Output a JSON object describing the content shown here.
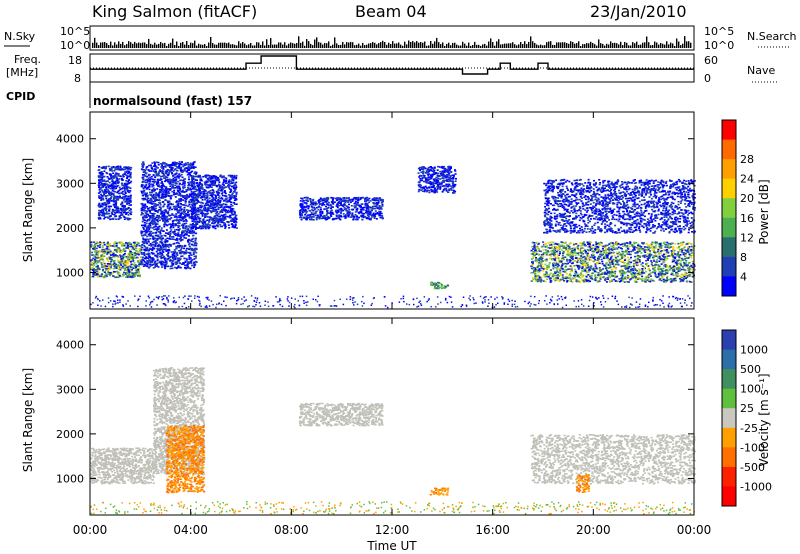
{
  "header": {
    "station": "King Salmon (fitACF)",
    "beam": "Beam 04",
    "date": "23/Jan/2010"
  },
  "strip": {
    "nsky_label": "N.Sky",
    "nsearch_label": "N.Search",
    "log_tick_high": "10^5",
    "log_tick_low": "10^0",
    "freq_label_line1": "Freq.",
    "freq_label_line2": "[MHz]",
    "freq_tick_high": "18",
    "freq_tick_low": "8",
    "nave_label": "Nave",
    "nave_tick_high": "60",
    "nave_tick_low": "0",
    "cpid_label": "CPID",
    "cpid_value": "normalsound (fast) 157"
  },
  "colors": {
    "power": [
      "#0000ff",
      "#1f3fb4",
      "#2b6e6e",
      "#4caf50",
      "#7fcf3f",
      "#ffd000",
      "#ff9f00",
      "#ff6a00",
      "#ff0000"
    ],
    "velocity": [
      "#2b3fb0",
      "#2b6ea8",
      "#3f8f5f",
      "#5fc03f",
      "#c8c8c0",
      "#ffa000",
      "#ff7000",
      "#ff2000",
      "#ff0000"
    ],
    "ground_scatter": "#c0c0b8"
  },
  "chart_data": [
    {
      "type": "heatmap",
      "panel": "power",
      "xlabel": "",
      "ylabel": "Slant Range [km]",
      "x_range_hours": [
        0,
        24
      ],
      "ylim_km": [
        180,
        4600
      ],
      "y_ticks": [
        "1000",
        "2000",
        "3000",
        "4000"
      ],
      "colorbar_label": "Power [dB]",
      "colorbar_ticks": [
        "4",
        "8",
        "12",
        "16",
        "20",
        "24",
        "28"
      ],
      "scatter_regions": [
        {
          "t": [
            0.0,
            2.0
          ],
          "r": [
            900,
            1700
          ],
          "intensity": "high"
        },
        {
          "t": [
            2.0,
            4.2
          ],
          "r": [
            1100,
            3500
          ],
          "intensity": "low"
        },
        {
          "t": [
            0.3,
            1.6
          ],
          "r": [
            2200,
            3400
          ],
          "intensity": "low"
        },
        {
          "t": [
            4.0,
            5.8
          ],
          "r": [
            2000,
            3200
          ],
          "intensity": "low"
        },
        {
          "t": [
            8.3,
            11.6
          ],
          "r": [
            2200,
            2700
          ],
          "intensity": "low"
        },
        {
          "t": [
            13.5,
            14.2
          ],
          "r": [
            650,
            800
          ],
          "intensity": "medium"
        },
        {
          "t": [
            13.0,
            14.5
          ],
          "r": [
            2800,
            3400
          ],
          "intensity": "low"
        },
        {
          "t": [
            17.5,
            24.0
          ],
          "r": [
            800,
            1700
          ],
          "intensity": "high"
        },
        {
          "t": [
            18.0,
            24.0
          ],
          "r": [
            1900,
            3100
          ],
          "intensity": "low"
        }
      ]
    },
    {
      "type": "heatmap",
      "panel": "velocity",
      "xlabel": "Time UT",
      "ylabel": "Slant Range [km]",
      "x_range_hours": [
        0,
        24
      ],
      "ylim_km": [
        180,
        4600
      ],
      "y_ticks": [
        "1000",
        "2000",
        "3000",
        "4000"
      ],
      "x_ticks": [
        "00:00",
        "04:00",
        "08:00",
        "12:00",
        "16:00",
        "20:00",
        "00:00"
      ],
      "colorbar_label": "Velocity [m s⁻¹]",
      "colorbar_ticks": [
        "1000",
        "500",
        "100",
        "25",
        "-25",
        "-100",
        "-500",
        "-1000"
      ],
      "scatter_regions": [
        {
          "t": [
            0.0,
            2.5
          ],
          "r": [
            900,
            1700
          ],
          "kind": "ground"
        },
        {
          "t": [
            2.5,
            4.5
          ],
          "r": [
            1100,
            3500
          ],
          "kind": "ground"
        },
        {
          "t": [
            8.3,
            11.6
          ],
          "r": [
            2200,
            2700
          ],
          "kind": "ground"
        },
        {
          "t": [
            17.5,
            24.0
          ],
          "r": [
            900,
            2000
          ],
          "kind": "ground"
        },
        {
          "t": [
            3.0,
            4.5
          ],
          "r": [
            700,
            2200
          ],
          "kind": "negative"
        },
        {
          "t": [
            13.5,
            14.2
          ],
          "r": [
            650,
            800
          ],
          "kind": "negative"
        },
        {
          "t": [
            19.3,
            19.8
          ],
          "r": [
            700,
            1100
          ],
          "kind": "negative"
        }
      ]
    }
  ]
}
